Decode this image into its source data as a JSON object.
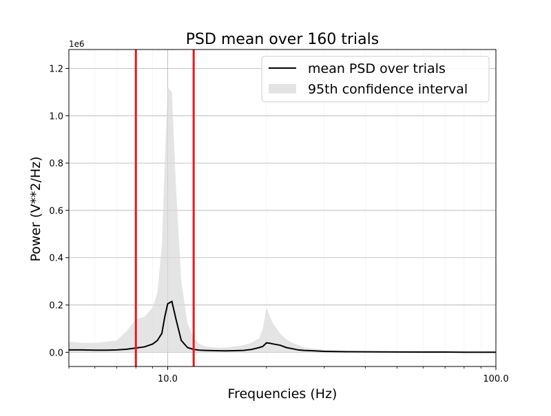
{
  "chart_data": {
    "type": "area",
    "title": "PSD mean over 160 trials",
    "xlabel": "Frequencies (Hz)",
    "ylabel": "Power (V**2/Hz)",
    "x_scale": "log",
    "xlim": [
      5,
      100
    ],
    "ylim": [
      -60000,
      1280000
    ],
    "y_offset_label": "1e6",
    "x_major_ticks": [
      10,
      100
    ],
    "x_tick_labels": [
      "10.0",
      "100.0"
    ],
    "y_ticks": [
      0,
      200000,
      400000,
      600000,
      800000,
      1000000,
      1200000
    ],
    "y_tick_labels": [
      "0.0",
      "0.2",
      "0.4",
      "0.6",
      "0.8",
      "1.0",
      "1.2"
    ],
    "grid": true,
    "legend_position": "top-right",
    "vlines": [
      {
        "x": 8,
        "color": "#e41a1c"
      },
      {
        "x": 12,
        "color": "#e41a1c"
      }
    ],
    "series": [
      {
        "name": "mean PSD over trials",
        "kind": "line",
        "color": "#000000",
        "x": [
          5,
          5.5,
          6,
          6.5,
          7,
          7.5,
          8,
          8.5,
          9,
          9.3,
          9.6,
          9.8,
          10,
          10.3,
          10.6,
          11,
          11.5,
          12,
          12.5,
          13,
          14,
          15,
          16,
          17,
          18,
          19,
          19.5,
          20,
          20.5,
          21,
          22,
          23,
          24,
          25,
          26,
          28,
          30,
          35,
          40,
          50,
          60,
          70,
          80,
          90,
          100
        ],
        "values": [
          10000,
          10000,
          9000,
          9000,
          10000,
          13000,
          18000,
          23000,
          35000,
          50000,
          80000,
          150000,
          205000,
          215000,
          140000,
          50000,
          20000,
          12000,
          9000,
          8000,
          7000,
          6000,
          7000,
          8000,
          12000,
          20000,
          25000,
          40000,
          38000,
          35000,
          30000,
          20000,
          15000,
          10000,
          8000,
          6000,
          4000,
          2500,
          2000,
          1500,
          1000,
          1000,
          500,
          500,
          500
        ]
      },
      {
        "name": "95th confidence interval",
        "kind": "band",
        "color": "#d9d9d9",
        "x": [
          5,
          5.5,
          6,
          6.5,
          7,
          7.5,
          8,
          8.5,
          9,
          9.3,
          9.6,
          9.8,
          10,
          10.3,
          10.6,
          11,
          11.5,
          12,
          12.5,
          13,
          14,
          15,
          16,
          17,
          18,
          19,
          19.5,
          20,
          20.5,
          21,
          22,
          23,
          24,
          25,
          26,
          28,
          30,
          35,
          40,
          50,
          60,
          70,
          80,
          90,
          100
        ],
        "lower": [
          0,
          0,
          0,
          0,
          0,
          0,
          0,
          0,
          0,
          0,
          0,
          0,
          0,
          0,
          0,
          0,
          0,
          0,
          0,
          0,
          0,
          0,
          0,
          0,
          0,
          0,
          0,
          0,
          0,
          0,
          0,
          0,
          0,
          0,
          0,
          0,
          0,
          0,
          0,
          0,
          0,
          0,
          0,
          0,
          0
        ],
        "upper": [
          45000,
          40000,
          40000,
          45000,
          50000,
          90000,
          140000,
          150000,
          190000,
          250000,
          450000,
          800000,
          1120000,
          1100000,
          700000,
          300000,
          120000,
          60000,
          35000,
          25000,
          20000,
          20000,
          25000,
          30000,
          40000,
          60000,
          100000,
          190000,
          150000,
          120000,
          80000,
          55000,
          40000,
          30000,
          20000,
          15000,
          10000,
          6000,
          4000,
          3000,
          2500,
          2000,
          1500,
          1500,
          1500
        ]
      }
    ]
  }
}
